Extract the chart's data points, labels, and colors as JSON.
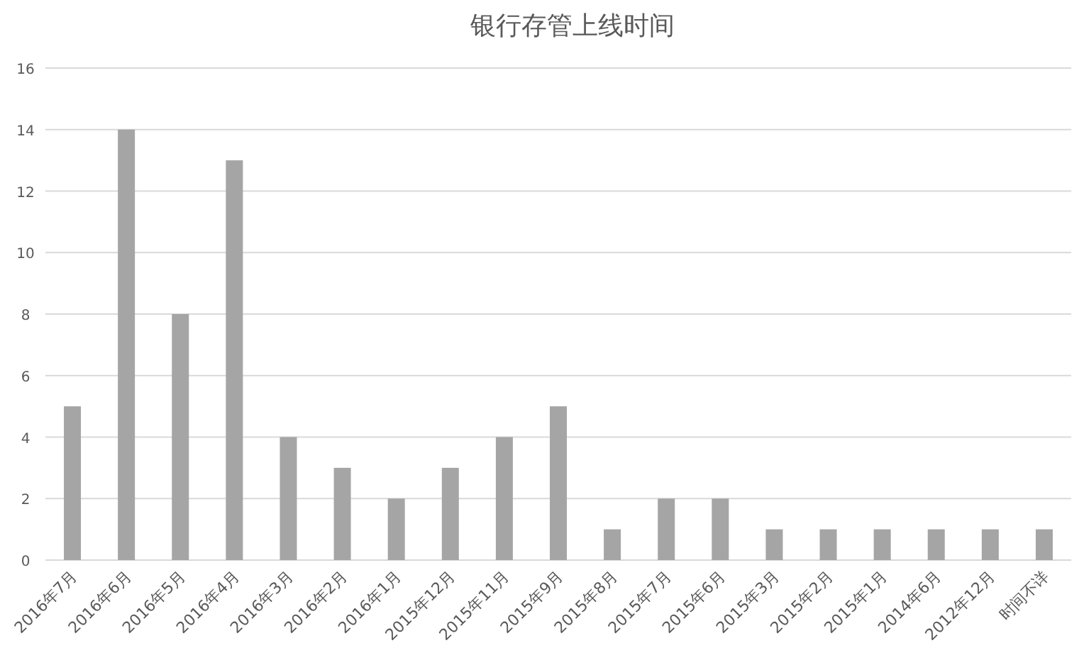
{
  "chart_data": {
    "type": "bar",
    "title": "银行存管上线时间",
    "categories": [
      "2016年7月",
      "2016年6月",
      "2016年5月",
      "2016年4月",
      "2016年3月",
      "2016年2月",
      "2016年1月",
      "2015年12月",
      "2015年11月",
      "2015年9月",
      "2015年8月",
      "2015年7月",
      "2015年6月",
      "2015年3月",
      "2015年2月",
      "2015年1月",
      "2014年6月",
      "2012年12月",
      "时间不详"
    ],
    "values": [
      5,
      14,
      8,
      13,
      4,
      3,
      2,
      3,
      4,
      5,
      1,
      2,
      2,
      1,
      1,
      1,
      1,
      1,
      1
    ],
    "color": "#a5a5a5",
    "ylim": [
      0,
      16
    ],
    "yticks": [
      0,
      2,
      4,
      6,
      8,
      10,
      12,
      14,
      16
    ],
    "grid": "y",
    "legend": false
  }
}
